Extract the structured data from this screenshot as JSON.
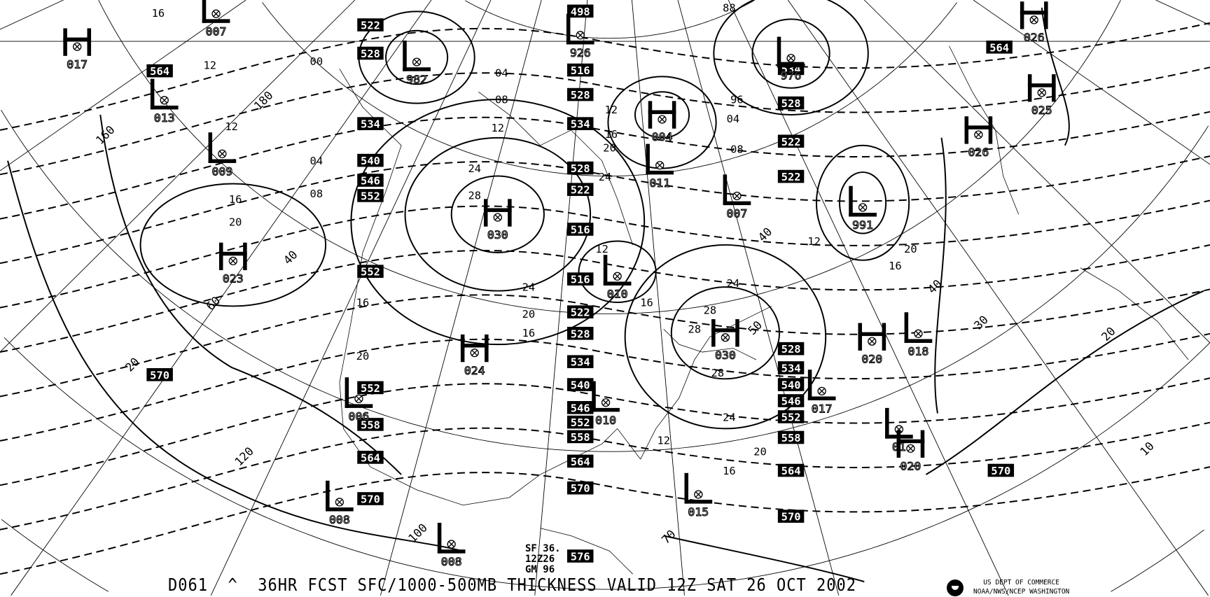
{
  "footer": {
    "product_id": "D061",
    "caret": "^",
    "title": "36HR FCST SFC/1000-500MB THICKNESS VALID 12Z SAT 26 OCT 2002",
    "agency_line1": "US DEPT OF COMMERCE",
    "agency_line2": "NOAA/NWS/NCEP WASHINGTON"
  },
  "inset": {
    "line1": "SF 36.",
    "line2": "12Z26",
    "line3": "GM 96"
  },
  "colors": {
    "ink": "#000000",
    "background": "#ffffff"
  },
  "pressure_centers": [
    {
      "type": "H",
      "value": "017"
    },
    {
      "type": "L",
      "value": "007"
    },
    {
      "type": "L",
      "value": "013"
    },
    {
      "type": "L",
      "value": "009"
    },
    {
      "type": "H",
      "value": "023"
    },
    {
      "type": "L",
      "value": "982"
    },
    {
      "type": "L",
      "value": "926"
    },
    {
      "type": "H",
      "value": "030"
    },
    {
      "type": "H",
      "value": "024"
    },
    {
      "type": "L",
      "value": "006"
    },
    {
      "type": "L",
      "value": "008"
    },
    {
      "type": "L",
      "value": "008"
    },
    {
      "type": "L",
      "value": "010"
    },
    {
      "type": "L",
      "value": "010"
    },
    {
      "type": "H",
      "value": "004"
    },
    {
      "type": "L",
      "value": "011"
    },
    {
      "type": "L",
      "value": "007"
    },
    {
      "type": "L",
      "value": "976"
    },
    {
      "type": "L",
      "value": "991"
    },
    {
      "type": "H",
      "value": "026"
    },
    {
      "type": "H",
      "value": "025"
    },
    {
      "type": "H",
      "value": "026"
    },
    {
      "type": "L",
      "value": "018"
    },
    {
      "type": "H",
      "value": "020"
    },
    {
      "type": "H",
      "value": "030"
    },
    {
      "type": "L",
      "value": "017"
    },
    {
      "type": "L",
      "value": "01"
    },
    {
      "type": "H",
      "value": "020"
    },
    {
      "type": "L",
      "value": "015"
    }
  ],
  "thickness_labels": [
    "522",
    "528",
    "534",
    "540",
    "546",
    "552",
    "552",
    "564",
    "570",
    "552",
    "558",
    "564",
    "570",
    "498",
    "516",
    "528",
    "534",
    "528",
    "522",
    "516",
    "516",
    "522",
    "528",
    "534",
    "540",
    "546",
    "552",
    "558",
    "564",
    "570",
    "576",
    "534",
    "528",
    "522",
    "522",
    "528",
    "534",
    "540",
    "546",
    "552",
    "558",
    "564",
    "570",
    "564",
    "570"
  ],
  "isobar_labels": [
    "16",
    "12",
    "04",
    "00",
    "08",
    "12",
    "16",
    "20",
    "24",
    "28",
    "24",
    "20",
    "16",
    "12",
    "08",
    "04",
    "88",
    "96",
    "04",
    "08",
    "12",
    "16",
    "20",
    "24",
    "28",
    "16",
    "12",
    "16",
    "20",
    "12",
    "16",
    "20",
    "24",
    "28",
    "28",
    "24",
    "20",
    "16",
    "12"
  ],
  "graticule_labels": [
    "160",
    "180",
    "40",
    "60",
    "20",
    "120",
    "100",
    "70",
    "40",
    "50",
    "40",
    "30",
    "20",
    "10"
  ]
}
